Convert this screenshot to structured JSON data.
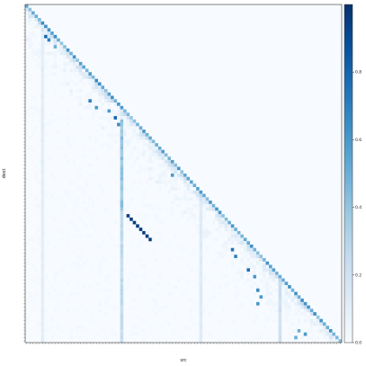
{
  "chart_data": {
    "type": "heatmap",
    "title": "",
    "xlabel": "src",
    "ylabel": "dest",
    "n_tokens": 100,
    "value_range": [
      0,
      1
    ],
    "colormap": "Blues",
    "colorbar_ticks": [
      0.0,
      0.2,
      0.4,
      0.6,
      0.8
    ],
    "mask": "lower-triangular (upper triangle empty)",
    "diagonal_strength": 0.65,
    "hot_columns": [
      {
        "col": 5,
        "value": 0.12,
        "rows": [
          5,
          99
        ]
      },
      {
        "col": 30,
        "value": 0.45,
        "rows": [
          34,
          60
        ]
      },
      {
        "col": 30,
        "value": 0.3,
        "rows": [
          60,
          99
        ]
      },
      {
        "col": 55,
        "value": 0.15,
        "rows": [
          55,
          99
        ]
      },
      {
        "col": 80,
        "value": 0.25,
        "rows": [
          80,
          99
        ]
      }
    ],
    "hot_cells": [
      {
        "row": 9,
        "col": 6,
        "value": 0.8
      },
      {
        "row": 10,
        "col": 7,
        "value": 0.7
      },
      {
        "row": 12,
        "col": 9,
        "value": 0.5
      },
      {
        "row": 28,
        "col": 20,
        "value": 0.7
      },
      {
        "row": 30,
        "col": 22,
        "value": 0.6
      },
      {
        "row": 31,
        "col": 26,
        "value": 0.6
      },
      {
        "row": 33,
        "col": 28,
        "value": 0.8
      },
      {
        "row": 35,
        "col": 29,
        "value": 0.65
      },
      {
        "row": 46,
        "col": 48,
        "value": 0.0
      },
      {
        "row": 50,
        "col": 46,
        "value": 0.6
      },
      {
        "row": 72,
        "col": 65,
        "value": 0.75
      },
      {
        "row": 74,
        "col": 66,
        "value": 0.7
      },
      {
        "row": 78,
        "col": 70,
        "value": 0.75
      },
      {
        "row": 80,
        "col": 72,
        "value": 0.6
      },
      {
        "row": 84,
        "col": 73,
        "value": 0.65
      },
      {
        "row": 86,
        "col": 74,
        "value": 0.6
      },
      {
        "row": 88,
        "col": 73,
        "value": 0.6
      },
      {
        "row": 96,
        "col": 86,
        "value": 0.5
      },
      {
        "row": 97,
        "col": 88,
        "value": 0.6
      },
      {
        "row": 98,
        "col": 85,
        "value": 0.5
      }
    ],
    "offdiagonal_segment": {
      "from": {
        "row": 62,
        "col": 32
      },
      "to": {
        "row": 69,
        "col": 39
      },
      "value": 0.95
    }
  }
}
